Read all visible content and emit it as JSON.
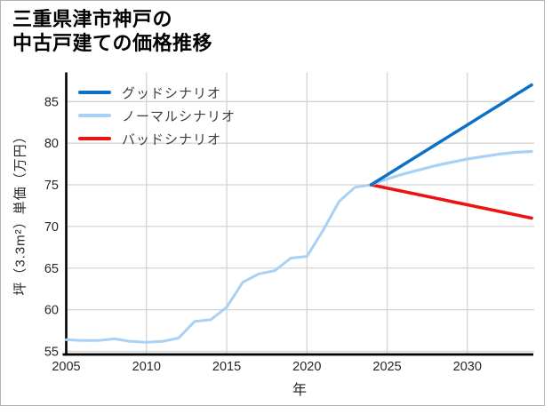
{
  "title": {
    "line1": "三重県津市神戸の",
    "line2": "中古戸建ての価格推移"
  },
  "legend": [
    {
      "label": "グッドシナリオ",
      "color": "#0d70c6"
    },
    {
      "label": "ノーマルシナリオ",
      "color": "#a9d1f4"
    },
    {
      "label": "バッドシナリオ",
      "color": "#ee1212"
    }
  ],
  "axes": {
    "x_label": "年",
    "y_label": "坪（3.3m²）単価（万円）",
    "x_ticks": [
      2005,
      2010,
      2015,
      2020,
      2025,
      2030
    ],
    "y_ticks": [
      55,
      60,
      65,
      70,
      75,
      80,
      85
    ]
  },
  "chart_data": {
    "type": "line",
    "title": "三重県津市神戸の中古戸建ての価格推移",
    "xlabel": "年",
    "ylabel": "坪（3.3m²）単価（万円）",
    "xlim": [
      2005,
      2034
    ],
    "ylim": [
      55,
      88.5
    ],
    "grid": true,
    "grid_color": "#d4d4d4",
    "axis_color": "#000000",
    "legend_position": "top-left",
    "series": [
      {
        "name": "history",
        "label": "",
        "color": "#a9d1f4",
        "width": 3,
        "years": [
          2005,
          2006,
          2007,
          2008,
          2009,
          2010,
          2011,
          2012,
          2013,
          2014,
          2015,
          2016,
          2017,
          2018,
          2019,
          2020,
          2021,
          2022,
          2023,
          2024
        ],
        "values": [
          56.4,
          56.3,
          56.3,
          56.5,
          56.2,
          56.1,
          56.2,
          56.6,
          58.6,
          58.8,
          60.3,
          63.3,
          64.3,
          64.7,
          66.2,
          66.4,
          69.5,
          73.0,
          74.7,
          75.0
        ]
      },
      {
        "name": "bad",
        "label": "バッドシナリオ",
        "color": "#ee1212",
        "width": 3.6,
        "years": [
          2024,
          2025,
          2026,
          2027,
          2028,
          2029,
          2030,
          2031,
          2032,
          2033,
          2034
        ],
        "values": [
          75.0,
          74.6,
          74.2,
          73.8,
          73.4,
          73.0,
          72.6,
          72.2,
          71.8,
          71.4,
          71.0
        ]
      },
      {
        "name": "normal",
        "label": "ノーマルシナリオ",
        "color": "#a9d1f4",
        "width": 3.2,
        "years": [
          2024,
          2025,
          2026,
          2027,
          2028,
          2029,
          2030,
          2031,
          2032,
          2033,
          2034
        ],
        "values": [
          75.0,
          75.7,
          76.3,
          76.8,
          77.3,
          77.7,
          78.1,
          78.4,
          78.7,
          78.9,
          79.0
        ]
      },
      {
        "name": "good",
        "label": "グッドシナリオ",
        "color": "#0d70c6",
        "width": 3.5,
        "years": [
          2024,
          2025,
          2026,
          2027,
          2028,
          2029,
          2030,
          2031,
          2032,
          2033,
          2034
        ],
        "values": [
          75.0,
          76.2,
          77.4,
          78.6,
          79.8,
          81.0,
          82.2,
          83.4,
          84.6,
          85.8,
          87.0
        ]
      }
    ]
  }
}
